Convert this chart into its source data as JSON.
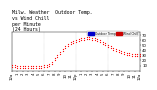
{
  "title": "Milw. Weather  Outdoor Temp.\nvs Wind Chill\nper Minute\n(24 Hours)",
  "legend_labels": [
    "Outdoor Temp",
    "Wind Chill"
  ],
  "legend_colors": [
    "#0000cc",
    "#cc0000"
  ],
  "bg_color": "#ffffff",
  "plot_bg_color": "#ffffff",
  "dot_color": "#ff0000",
  "grid_color": "#aaaaaa",
  "ylim": [
    0,
    75
  ],
  "yticks": [
    10,
    20,
    30,
    40,
    50,
    60,
    70
  ],
  "x_data": [
    0,
    30,
    60,
    90,
    120,
    150,
    180,
    210,
    240,
    270,
    300,
    330,
    360,
    390,
    420,
    450,
    480,
    510,
    540,
    570,
    600,
    630,
    660,
    690,
    720,
    750,
    780,
    810,
    840,
    870,
    900,
    930,
    960,
    990,
    1020,
    1050,
    1080,
    1110,
    1140,
    1170,
    1200,
    1230,
    1260,
    1290,
    1320,
    1350,
    1380,
    1410,
    1440
  ],
  "y_temp": [
    12,
    11,
    10,
    9,
    9,
    9,
    9,
    9,
    10,
    10,
    10,
    10,
    11,
    12,
    14,
    18,
    24,
    30,
    36,
    42,
    48,
    52,
    56,
    58,
    60,
    62,
    64,
    65,
    66,
    66,
    65,
    64,
    62,
    60,
    57,
    54,
    51,
    48,
    45,
    42,
    40,
    38,
    36,
    35,
    34,
    33,
    32,
    32,
    32
  ],
  "y_windchill": [
    8,
    7,
    6,
    5,
    5,
    5,
    5,
    5,
    6,
    6,
    6,
    6,
    7,
    8,
    10,
    14,
    20,
    26,
    32,
    38,
    44,
    48,
    52,
    54,
    56,
    58,
    60,
    61,
    62,
    62,
    61,
    60,
    58,
    56,
    53,
    50,
    47,
    44,
    41,
    38,
    36,
    34,
    32,
    31,
    30,
    29,
    28,
    28,
    28
  ],
  "xtick_labels": [
    "12a",
    "1",
    "2",
    "3",
    "4",
    "5",
    "6",
    "7",
    "8",
    "9",
    "10",
    "11",
    "12p",
    "1",
    "2",
    "3",
    "4",
    "5",
    "6",
    "7",
    "8",
    "9",
    "10",
    "11",
    "12a"
  ],
  "title_fontsize": 3.5,
  "tick_fontsize": 2.8,
  "marker_size": 0.8
}
